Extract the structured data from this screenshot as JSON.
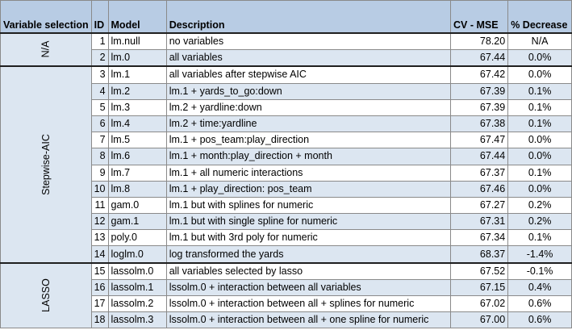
{
  "table": {
    "headers": {
      "selection": "Variable selection",
      "id": "ID",
      "model": "Model",
      "description": "Description",
      "cv_mse": "CV - MSE",
      "decrease": "% Decrease"
    },
    "groups": [
      {
        "label": "N/A",
        "rows": [
          {
            "id": "1",
            "model": "lm.null",
            "description": "no variables",
            "cv_mse": "78.20",
            "decrease": "N/A"
          },
          {
            "id": "2",
            "model": "lm.0",
            "description": "all variables",
            "cv_mse": "67.44",
            "decrease": "0.0%"
          }
        ]
      },
      {
        "label": "Stepwise-AIC",
        "rows": [
          {
            "id": "3",
            "model": "lm.1",
            "description": "all variables after stepwise AIC",
            "cv_mse": "67.42",
            "decrease": "0.0%"
          },
          {
            "id": "4",
            "model": "lm.2",
            "description": "lm.1 + yards_to_go:down",
            "cv_mse": "67.39",
            "decrease": "0.1%"
          },
          {
            "id": "5",
            "model": "lm.3",
            "description": "lm.2 + yardline:down",
            "cv_mse": "67.39",
            "decrease": "0.1%"
          },
          {
            "id": "6",
            "model": "lm.4",
            "description": "lm.2 + time:yardline",
            "cv_mse": "67.38",
            "decrease": "0.1%"
          },
          {
            "id": "7",
            "model": "lm.5",
            "description": "lm.1 + pos_team:play_direction",
            "cv_mse": "67.47",
            "decrease": "0.0%"
          },
          {
            "id": "8",
            "model": "lm.6",
            "description": "lm.1 + month:play_direction + month",
            "cv_mse": "67.44",
            "decrease": "0.0%"
          },
          {
            "id": "9",
            "model": "lm.7",
            "description": "lm.1 + all numeric interactions",
            "cv_mse": "67.37",
            "decrease": "0.1%"
          },
          {
            "id": "10",
            "model": "lm.8",
            "description": "lm.1 + play_direction: pos_team",
            "cv_mse": "67.46",
            "decrease": "0.0%"
          },
          {
            "id": "11",
            "model": "gam.0",
            "description": "lm.1 but with splines for numeric",
            "cv_mse": "67.27",
            "decrease": "0.2%"
          },
          {
            "id": "12",
            "model": "gam.1",
            "description": "lm.1 but with single spline for numeric",
            "cv_mse": "67.31",
            "decrease": "0.2%"
          },
          {
            "id": "13",
            "model": "poly.0",
            "description": "lm.1 but with 3rd poly for numeric",
            "cv_mse": "67.34",
            "decrease": "0.1%"
          },
          {
            "id": "14",
            "model": "loglm.0",
            "description": "log transformed the yards",
            "cv_mse": "68.37",
            "decrease": "-1.4%"
          }
        ]
      },
      {
        "label": "LASSO",
        "rows": [
          {
            "id": "15",
            "model": "lassolm.0",
            "description": "all variables selected by lasso",
            "cv_mse": "67.52",
            "decrease": "-0.1%"
          },
          {
            "id": "16",
            "model": "lassolm.1",
            "description": "lssolm.0 + interaction between all variables",
            "cv_mse": "67.15",
            "decrease": "0.4%"
          },
          {
            "id": "17",
            "model": "lassolm.2",
            "description": "lssolm.0 + interaction between all + splines for numeric",
            "cv_mse": "67.02",
            "decrease": "0.6%"
          },
          {
            "id": "18",
            "model": "lassolm.3",
            "description": "lssolm.0 + interaction between all +  one spline for numeric",
            "cv_mse": "67.00",
            "decrease": "0.6%"
          }
        ]
      }
    ]
  }
}
